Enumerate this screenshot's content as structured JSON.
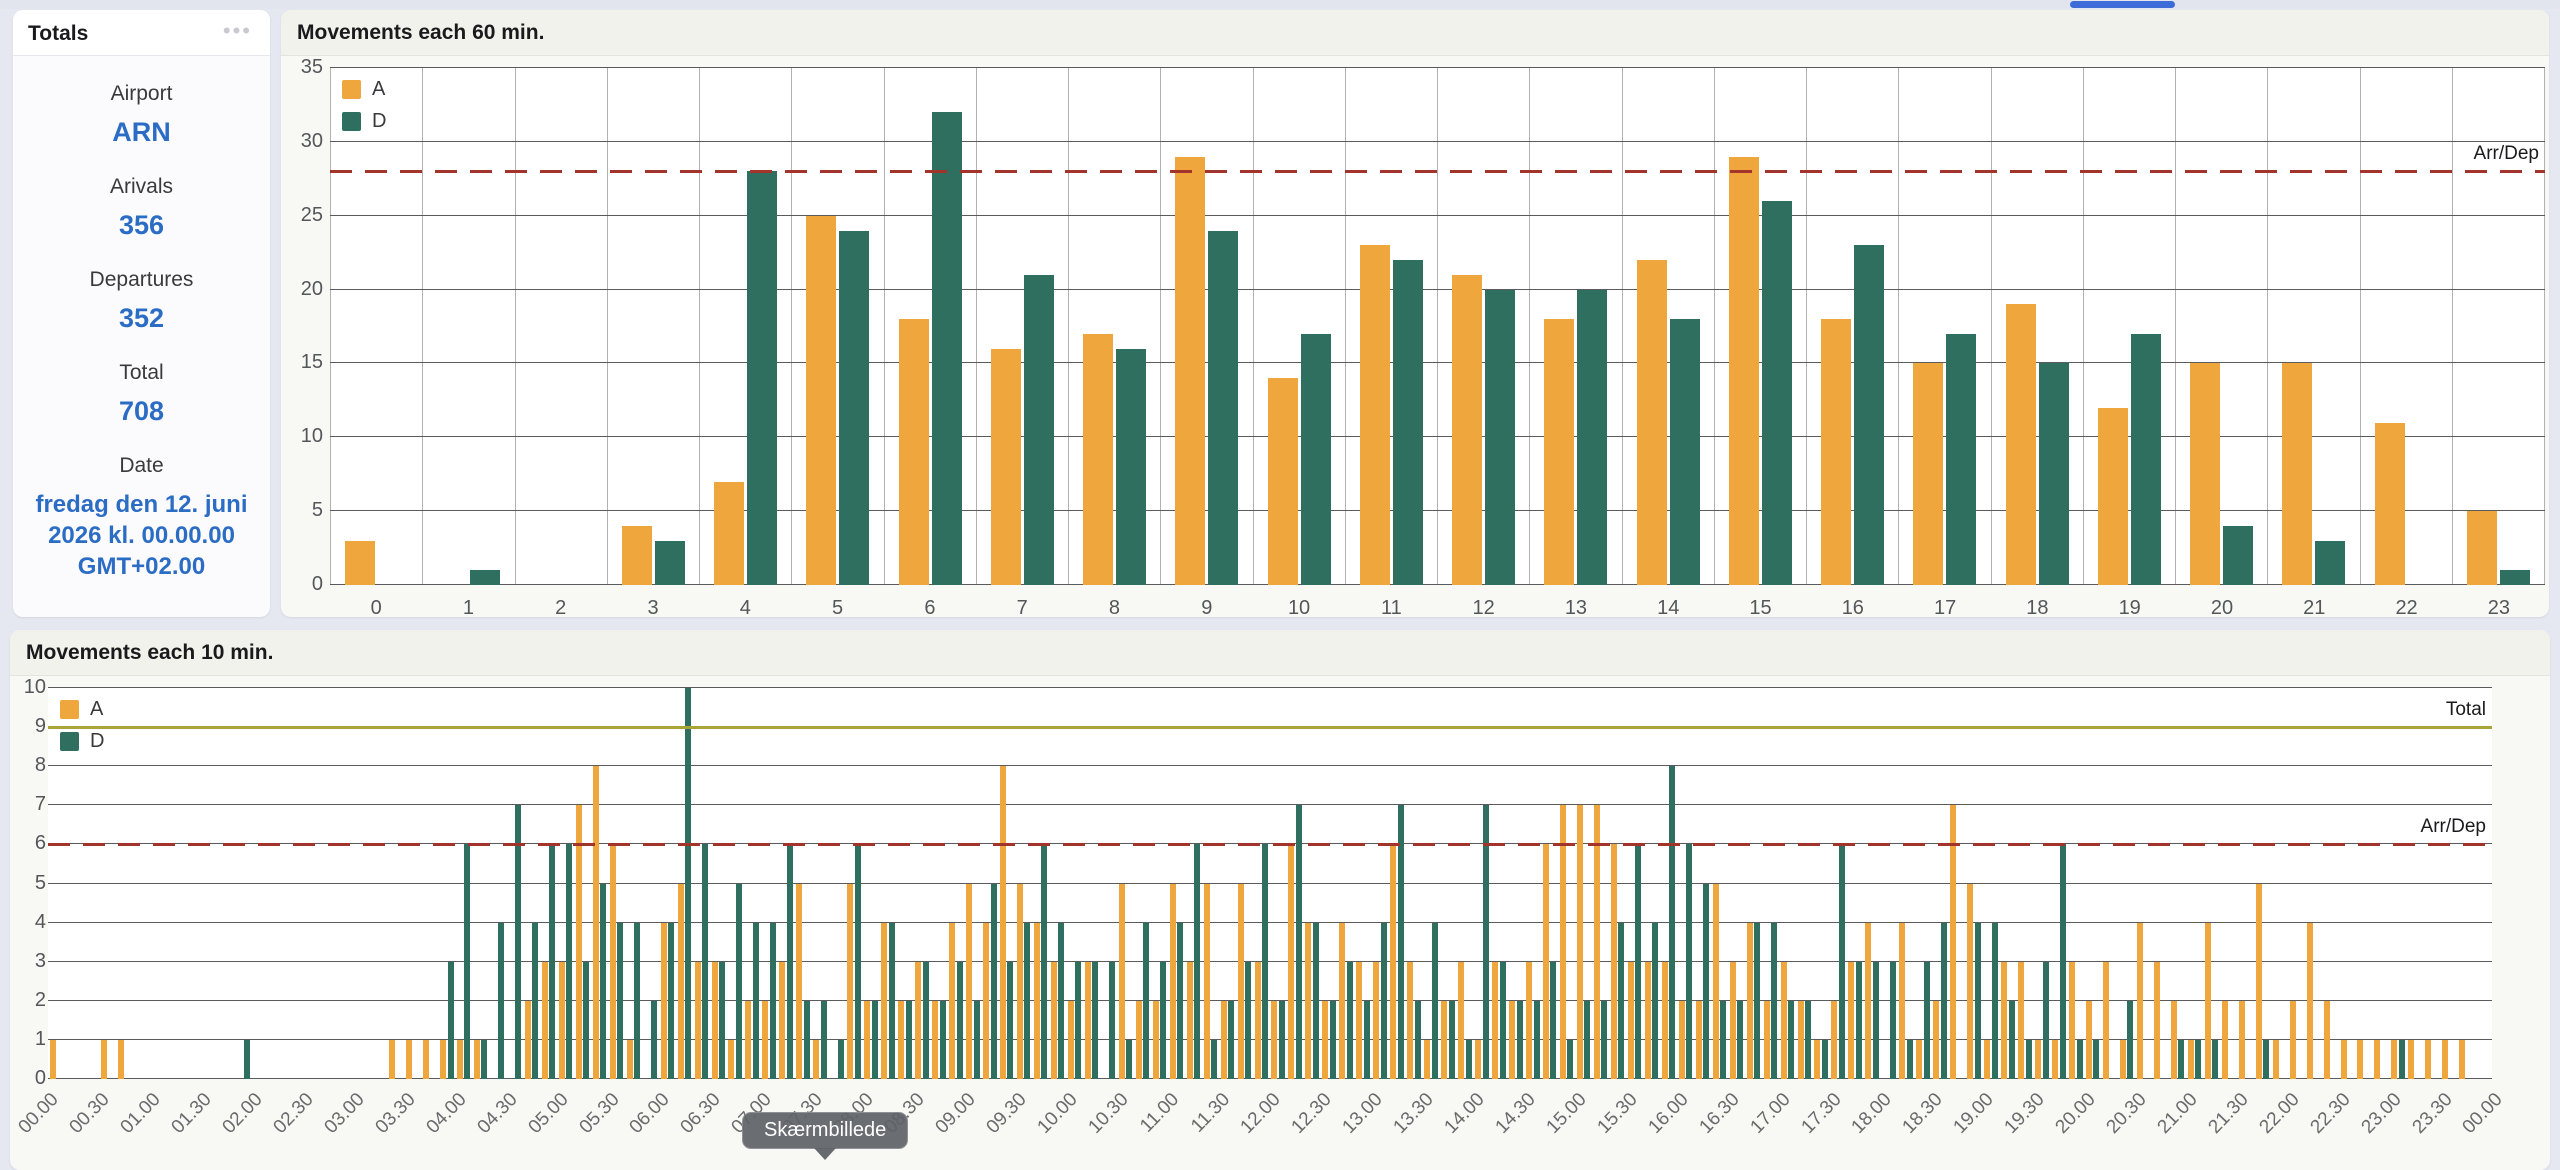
{
  "window": {
    "topbar_accent_color": "#3D6BD7"
  },
  "totals": {
    "title": "Totals",
    "menu_icon": "ellipsis-icon",
    "rows": [
      {
        "label": "Airport",
        "values": [
          "ARN"
        ]
      },
      {
        "label": "Arivals",
        "values": [
          "356"
        ]
      },
      {
        "label": "Departures",
        "values": [
          "352"
        ]
      },
      {
        "label": "Total",
        "values": [
          "708"
        ]
      },
      {
        "label": "Date",
        "values": [
          "fredag den 12. juni",
          "2026 kl. 00.00.00",
          "GMT+02.00"
        ]
      }
    ]
  },
  "tooltip": {
    "text": "Skærmbillede"
  },
  "colors": {
    "arrivals_bar": "#EFA63C",
    "departures_bar": "#2E6F60",
    "limit_line": "#A2342B",
    "total_line": "#A9A437",
    "value_blue": "#2B6CC4"
  },
  "chart_data": [
    {
      "type": "bar",
      "title": "Movements each 60 min.",
      "legend": [
        {
          "name": "A",
          "color": "#EFA63C"
        },
        {
          "name": "D",
          "color": "#2E6F60"
        }
      ],
      "categories": [
        0,
        1,
        2,
        3,
        4,
        5,
        6,
        7,
        8,
        9,
        10,
        11,
        12,
        13,
        14,
        15,
        16,
        17,
        18,
        19,
        20,
        21,
        22,
        23
      ],
      "series": [
        {
          "name": "A",
          "values": [
            3,
            0,
            0,
            4,
            7,
            25,
            18,
            16,
            17,
            29,
            14,
            23,
            21,
            18,
            22,
            29,
            18,
            15,
            19,
            12,
            15,
            15,
            11,
            5
          ]
        },
        {
          "name": "D",
          "values": [
            0,
            1,
            0,
            3,
            28,
            24,
            32,
            21,
            16,
            24,
            17,
            22,
            20,
            20,
            18,
            26,
            23,
            17,
            15,
            17,
            4,
            3,
            0,
            1
          ]
        }
      ],
      "ylim": [
        0,
        35
      ],
      "y_tick_labels": [
        "0",
        "5",
        "10",
        "15",
        "20",
        "25",
        "30",
        "35"
      ],
      "grid": "horizontal dark lines every 5, vertical separators each hour",
      "legend_position": "top-left inside plot",
      "annotations": [
        {
          "type": "dashed-line",
          "y": 28,
          "label": "Arr/Dep",
          "color": "#A2342B"
        }
      ]
    },
    {
      "type": "bar",
      "title": "Movements each 10 min.",
      "legend": [
        {
          "name": "A",
          "color": "#EFA63C"
        },
        {
          "name": "D",
          "color": "#2E6F60"
        }
      ],
      "slot_minutes": 10,
      "x_tick_labels": [
        "00.00",
        "00.30",
        "01.00",
        "01.30",
        "02.00",
        "02.30",
        "03.00",
        "03.30",
        "04.00",
        "04.30",
        "05.00",
        "05.30",
        "06.00",
        "06.30",
        "07.00",
        "07.30",
        "08.00",
        "08.30",
        "09.00",
        "09.30",
        "10.00",
        "10.30",
        "11.00",
        "11.30",
        "12.00",
        "12.30",
        "13.00",
        "13.30",
        "14.00",
        "14.30",
        "15.00",
        "15.30",
        "16.00",
        "16.30",
        "17.00",
        "17.30",
        "18.00",
        "18.30",
        "19.00",
        "19.30",
        "20.00",
        "20.30",
        "21.00",
        "21.30",
        "22.00",
        "22.30",
        "23.00",
        "23.30",
        "00.00"
      ],
      "series": [
        {
          "name": "A",
          "values": [
            1,
            0,
            0,
            1,
            1,
            0,
            0,
            0,
            0,
            0,
            0,
            0,
            0,
            0,
            0,
            0,
            0,
            0,
            0,
            0,
            1,
            1,
            1,
            1,
            1,
            1,
            0,
            0,
            2,
            3,
            3,
            7,
            8,
            6,
            1,
            0,
            4,
            5,
            3,
            3,
            1,
            2,
            2,
            3,
            5,
            1,
            0,
            5,
            2,
            4,
            2,
            3,
            2,
            4,
            5,
            4,
            8,
            5,
            4,
            3,
            2,
            3,
            0,
            5,
            2,
            2,
            5,
            3,
            5,
            2,
            5,
            3,
            2,
            6,
            4,
            2,
            4,
            3,
            3,
            6,
            3,
            1,
            2,
            3,
            1,
            3,
            2,
            3,
            6,
            7,
            7,
            7,
            6,
            3,
            3,
            3,
            2,
            2,
            5,
            3,
            4,
            2,
            3,
            2,
            1,
            2,
            3,
            4,
            0,
            4,
            1,
            2,
            7,
            5,
            1,
            3,
            3,
            1,
            1,
            3,
            2,
            3,
            1,
            4,
            3,
            2,
            1,
            4,
            2,
            2,
            5,
            1,
            2,
            4,
            2,
            1,
            1,
            1,
            1,
            1,
            1,
            1,
            1,
            0
          ]
        },
        {
          "name": "D",
          "values": [
            0,
            0,
            0,
            0,
            0,
            0,
            0,
            0,
            0,
            0,
            0,
            1,
            0,
            0,
            0,
            0,
            0,
            0,
            0,
            0,
            0,
            0,
            0,
            3,
            6,
            1,
            4,
            7,
            4,
            6,
            6,
            3,
            5,
            4,
            4,
            2,
            4,
            10,
            6,
            3,
            5,
            4,
            4,
            6,
            2,
            2,
            1,
            6,
            2,
            4,
            2,
            3,
            2,
            3,
            2,
            5,
            3,
            4,
            6,
            4,
            3,
            3,
            3,
            1,
            4,
            3,
            4,
            6,
            1,
            2,
            3,
            6,
            2,
            7,
            4,
            2,
            3,
            2,
            4,
            7,
            2,
            4,
            2,
            1,
            7,
            3,
            2,
            2,
            3,
            1,
            2,
            2,
            4,
            6,
            4,
            8,
            6,
            5,
            2,
            2,
            4,
            4,
            2,
            2,
            1,
            6,
            3,
            3,
            3,
            1,
            3,
            4,
            0,
            4,
            4,
            2,
            1,
            3,
            6,
            1,
            1,
            0,
            2,
            0,
            0,
            1,
            1,
            1,
            0,
            0,
            1,
            0,
            0,
            0,
            0,
            0,
            0,
            0,
            1,
            0,
            0,
            0,
            0,
            0
          ]
        }
      ],
      "ylim": [
        0,
        10
      ],
      "y_tick_labels": [
        "0",
        "1",
        "2",
        "3",
        "4",
        "5",
        "6",
        "7",
        "8",
        "9",
        "10"
      ],
      "grid": "horizontal dark lines every 1",
      "legend_position": "top-left inside plot",
      "annotations": [
        {
          "type": "line",
          "y": 9,
          "label": "Total",
          "color": "#A9A437"
        },
        {
          "type": "dashed-line",
          "y": 6,
          "label": "Arr/Dep",
          "color": "#A2342B"
        }
      ]
    }
  ]
}
